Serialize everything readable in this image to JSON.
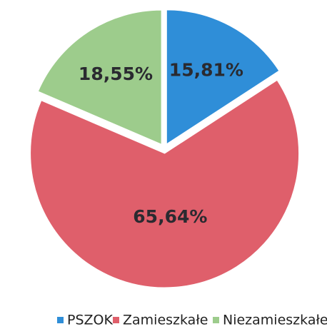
{
  "chart_data": {
    "type": "pie",
    "categories": [
      "PSZOK",
      "Zamieszkałe",
      "Niezamieszkałe"
    ],
    "values": [
      15.81,
      65.64,
      18.55
    ],
    "value_labels": [
      "15,81%",
      "65,64%",
      "18,55%"
    ],
    "colors": [
      "#2f8ed8",
      "#df5f6b",
      "#9dcc8c"
    ],
    "legend": "bottom"
  }
}
